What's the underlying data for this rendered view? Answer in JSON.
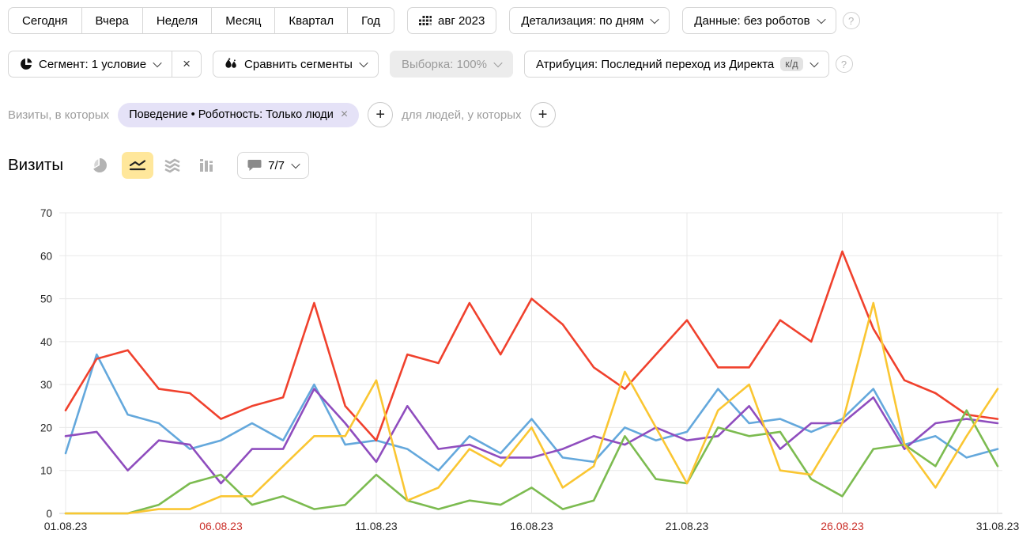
{
  "icons": {
    "close": "×",
    "plus": "+",
    "help": "?"
  },
  "toolbar": {
    "periods": [
      "Сегодня",
      "Вчера",
      "Неделя",
      "Месяц",
      "Квартал",
      "Год"
    ],
    "calendar_label": "авг 2023",
    "granularity_label": "Детализация: по дням",
    "data_mode_label": "Данные: без роботов"
  },
  "segment_bar": {
    "segment_label": "Сегмент: 1 условие",
    "compare_label": "Сравнить сегменты",
    "sampling_label": "Выборка: 100%",
    "attribution_label": "Атрибуция: Последний переход из Директа",
    "attribution_badge": "к/д"
  },
  "filters": {
    "visits_label": "Визиты, в которых",
    "chip_text": "Поведение • Роботность: Только люди",
    "people_label": "для людей, у которых"
  },
  "metric": {
    "title": "Визиты",
    "series_counter": "7/7"
  },
  "chart_data": {
    "type": "line",
    "title": "Визиты",
    "xlabel": "",
    "ylabel": "",
    "n_points": 31,
    "x_first_date": "01.08.23",
    "x_last_date": "31.08.23",
    "x_tick_labels": [
      "01.08.23",
      "06.08.23",
      "11.08.23",
      "16.08.23",
      "21.08.23",
      "26.08.23",
      "31.08.23"
    ],
    "x_tick_indices": [
      0,
      5,
      10,
      15,
      20,
      25,
      30
    ],
    "x_tick_red_indices": [
      5,
      25
    ],
    "ylim": [
      0,
      70
    ],
    "y_ticks": [
      0,
      10,
      20,
      30,
      40,
      50,
      60,
      70
    ],
    "grid": true,
    "legend": "hidden (series toggle 7/7)",
    "colors": {
      "grid": "#e8e8e8",
      "axis": "#cfcfcf",
      "tick_text": "#262626",
      "tick_text_red": "#cb312b"
    },
    "series": [
      {
        "name": "series-blue",
        "color": "#64a8dc",
        "values": [
          14,
          37,
          23,
          21,
          15,
          17,
          21,
          17,
          30,
          16,
          17,
          15,
          10,
          18,
          14,
          22,
          13,
          12,
          20,
          17,
          19,
          29,
          21,
          22,
          19,
          22,
          29,
          16,
          18,
          13,
          15
        ]
      },
      {
        "name": "series-purple",
        "color": "#8f4dbe",
        "values": [
          18,
          19,
          10,
          17,
          16,
          7,
          15,
          15,
          29,
          21,
          12,
          25,
          15,
          16,
          13,
          13,
          15,
          18,
          16,
          20,
          17,
          18,
          25,
          15,
          21,
          21,
          27,
          15,
          21,
          22,
          21
        ]
      },
      {
        "name": "series-red",
        "color": "#f0412d",
        "values": [
          24,
          36,
          38,
          29,
          28,
          22,
          25,
          27,
          49,
          25,
          17,
          37,
          35,
          49,
          37,
          50,
          44,
          34,
          29,
          37,
          45,
          34,
          34,
          45,
          40,
          61,
          43,
          31,
          28,
          23,
          22
        ]
      },
      {
        "name": "series-green",
        "color": "#7cbb50",
        "values": [
          0,
          0,
          0,
          2,
          7,
          9,
          2,
          4,
          1,
          2,
          9,
          3,
          1,
          3,
          2,
          6,
          1,
          3,
          18,
          8,
          7,
          20,
          18,
          19,
          8,
          4,
          15,
          16,
          11,
          24,
          11
        ]
      },
      {
        "name": "series-yellow",
        "color": "#fac632",
        "values": [
          0,
          0,
          0,
          1,
          1,
          4,
          4,
          11,
          18,
          18,
          31,
          3,
          6,
          15,
          11,
          20,
          6,
          11,
          33,
          20,
          7,
          24,
          30,
          10,
          9,
          21,
          49,
          16,
          6,
          18,
          29
        ]
      }
    ]
  }
}
